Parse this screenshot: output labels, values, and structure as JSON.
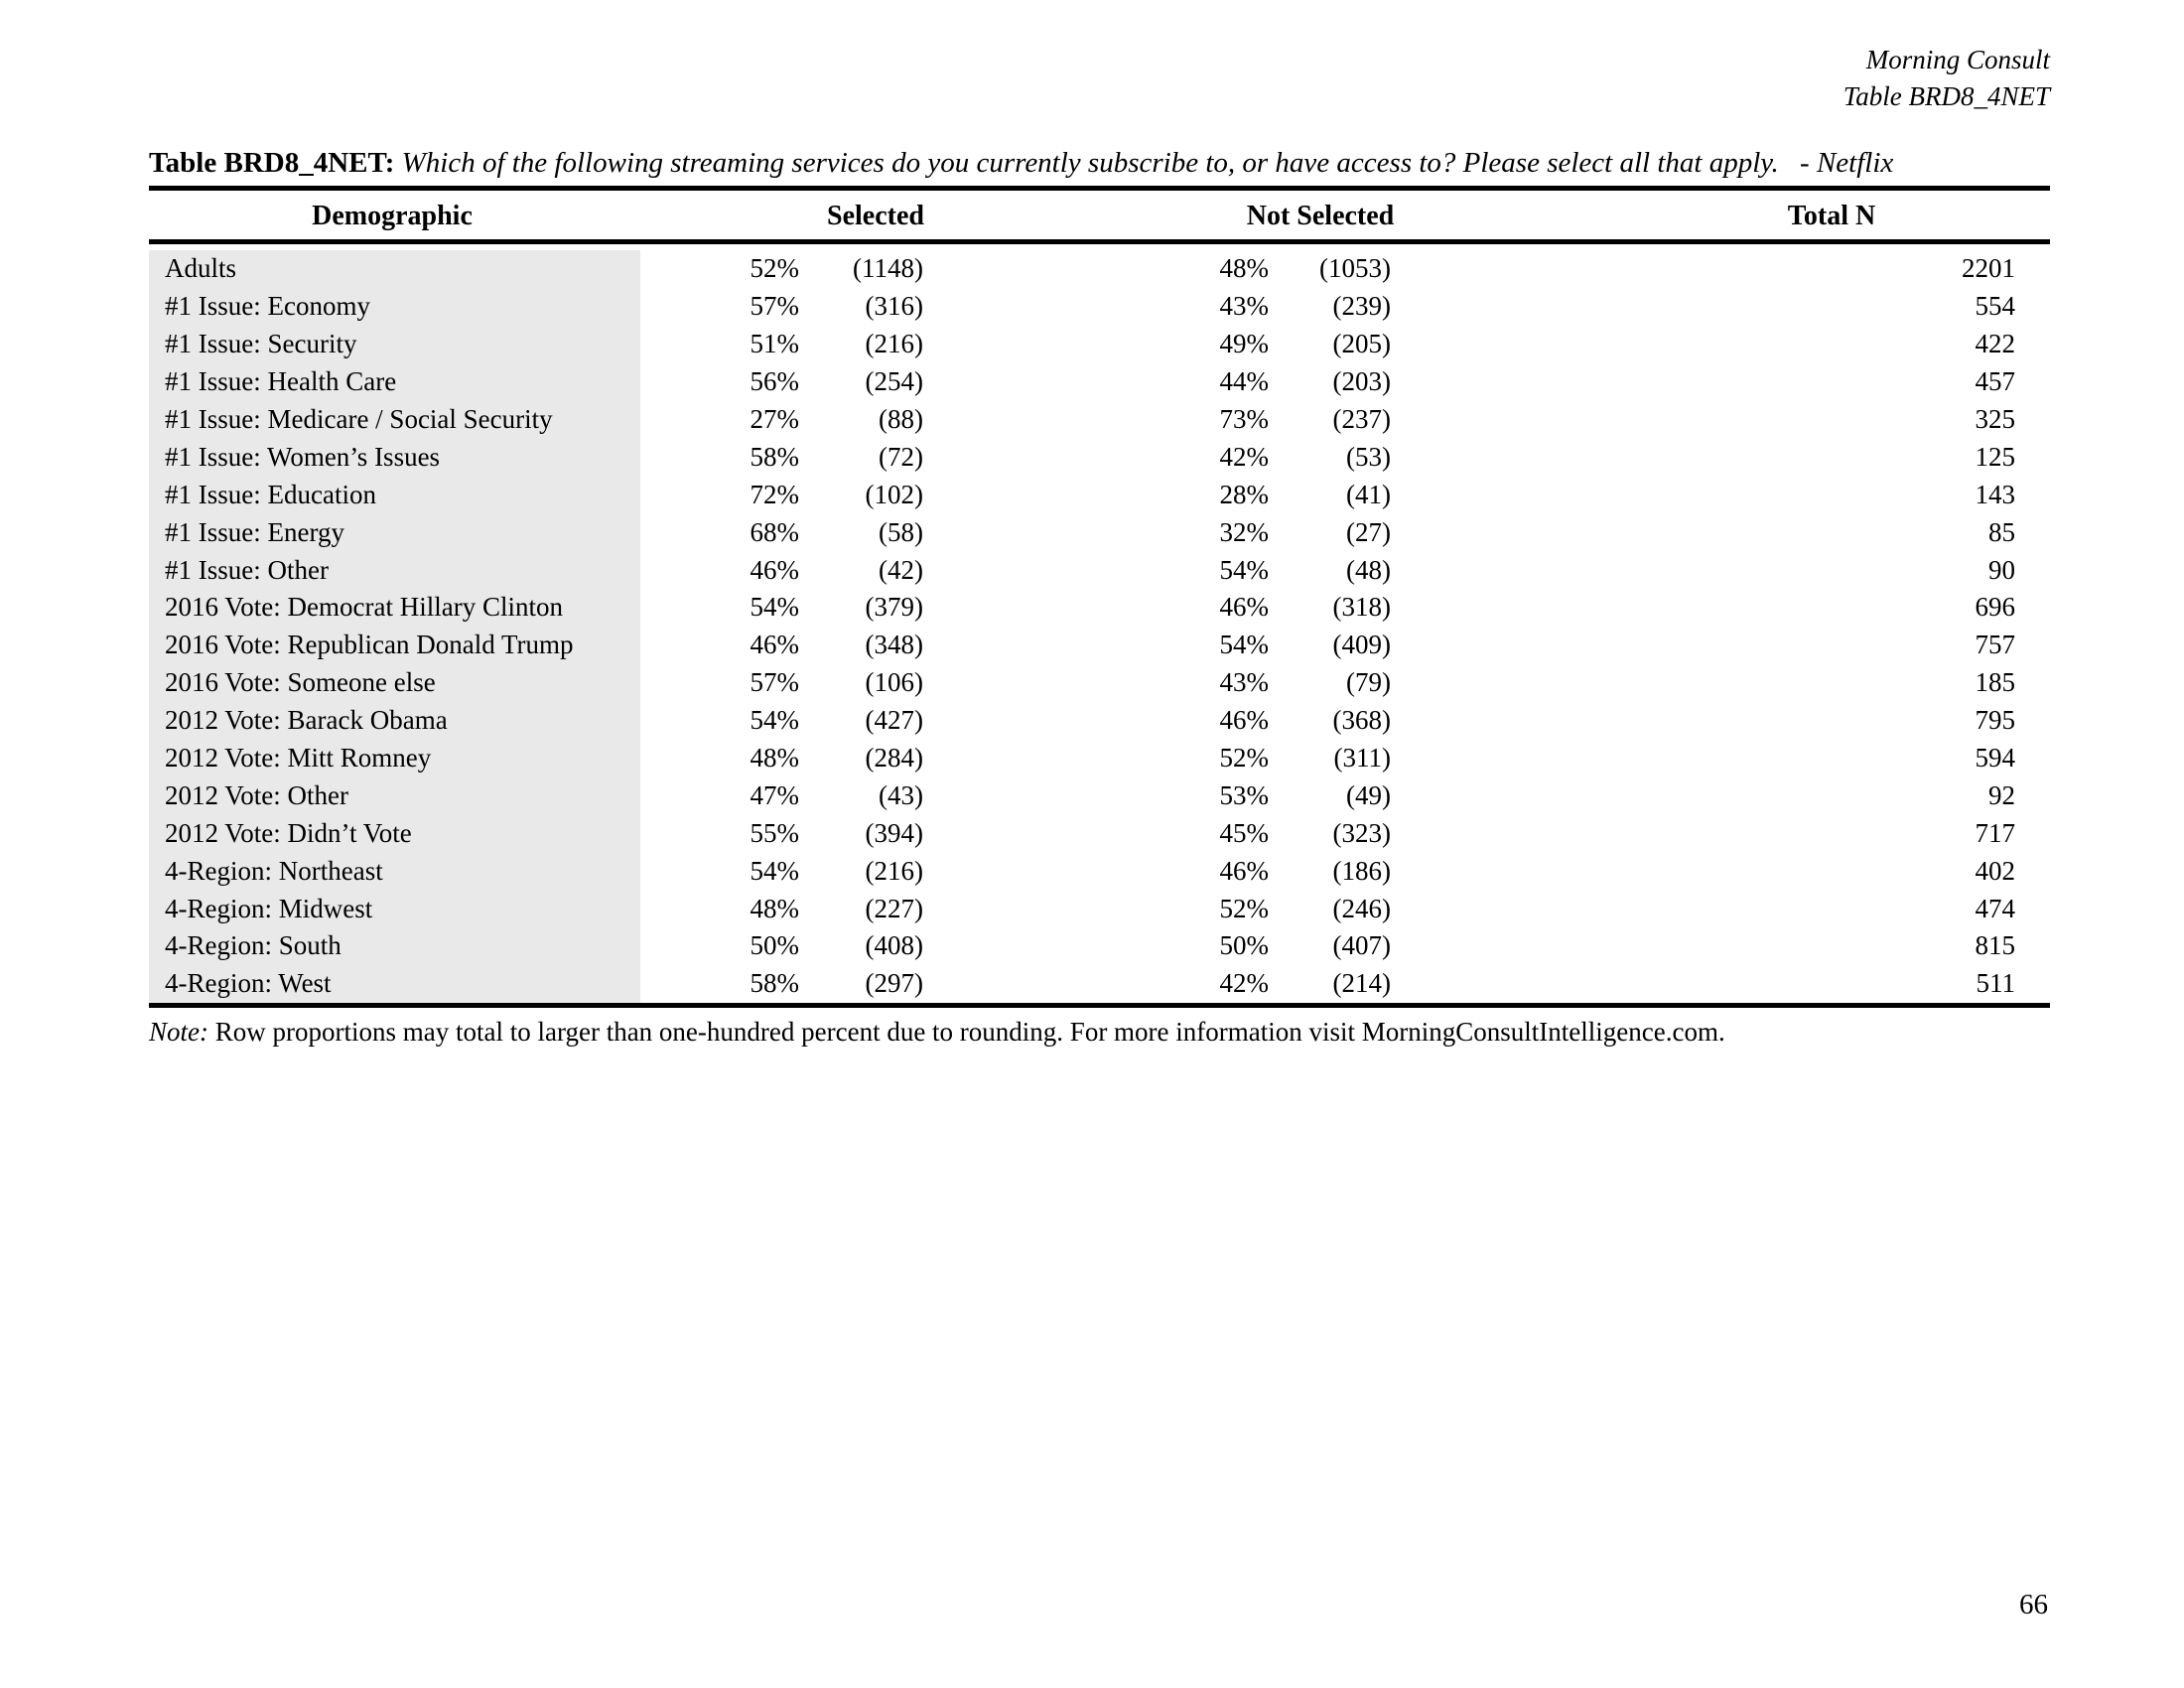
{
  "header": {
    "source": "Morning Consult",
    "table_ref": "Table BRD8_4NET"
  },
  "title": {
    "label": "Table BRD8_4NET:",
    "question": "Which of the following streaming services do you currently subscribe to, or have access to? Please select all that apply.",
    "topic": "- Netflix"
  },
  "table": {
    "columns": {
      "demographic": "Demographic",
      "selected": "Selected",
      "not_selected": "Not Selected",
      "total_n": "Total N"
    },
    "rows": [
      {
        "demographic": "Adults",
        "selected_pct": "52%",
        "selected_n": "(1148)",
        "not_selected_pct": "48%",
        "not_selected_n": "(1053)",
        "total_n": "2201"
      },
      {
        "demographic": "#1 Issue: Economy",
        "selected_pct": "57%",
        "selected_n": "(316)",
        "not_selected_pct": "43%",
        "not_selected_n": "(239)",
        "total_n": "554"
      },
      {
        "demographic": "#1 Issue: Security",
        "selected_pct": "51%",
        "selected_n": "(216)",
        "not_selected_pct": "49%",
        "not_selected_n": "(205)",
        "total_n": "422"
      },
      {
        "demographic": "#1 Issue: Health Care",
        "selected_pct": "56%",
        "selected_n": "(254)",
        "not_selected_pct": "44%",
        "not_selected_n": "(203)",
        "total_n": "457"
      },
      {
        "demographic": "#1 Issue: Medicare / Social Security",
        "selected_pct": "27%",
        "selected_n": "(88)",
        "not_selected_pct": "73%",
        "not_selected_n": "(237)",
        "total_n": "325"
      },
      {
        "demographic": "#1 Issue: Women’s Issues",
        "selected_pct": "58%",
        "selected_n": "(72)",
        "not_selected_pct": "42%",
        "not_selected_n": "(53)",
        "total_n": "125"
      },
      {
        "demographic": "#1 Issue: Education",
        "selected_pct": "72%",
        "selected_n": "(102)",
        "not_selected_pct": "28%",
        "not_selected_n": "(41)",
        "total_n": "143"
      },
      {
        "demographic": "#1 Issue: Energy",
        "selected_pct": "68%",
        "selected_n": "(58)",
        "not_selected_pct": "32%",
        "not_selected_n": "(27)",
        "total_n": "85"
      },
      {
        "demographic": "#1 Issue: Other",
        "selected_pct": "46%",
        "selected_n": "(42)",
        "not_selected_pct": "54%",
        "not_selected_n": "(48)",
        "total_n": "90"
      },
      {
        "demographic": "2016 Vote: Democrat Hillary Clinton",
        "selected_pct": "54%",
        "selected_n": "(379)",
        "not_selected_pct": "46%",
        "not_selected_n": "(318)",
        "total_n": "696"
      },
      {
        "demographic": "2016 Vote: Republican Donald Trump",
        "selected_pct": "46%",
        "selected_n": "(348)",
        "not_selected_pct": "54%",
        "not_selected_n": "(409)",
        "total_n": "757"
      },
      {
        "demographic": "2016 Vote: Someone else",
        "selected_pct": "57%",
        "selected_n": "(106)",
        "not_selected_pct": "43%",
        "not_selected_n": "(79)",
        "total_n": "185"
      },
      {
        "demographic": "2012 Vote: Barack Obama",
        "selected_pct": "54%",
        "selected_n": "(427)",
        "not_selected_pct": "46%",
        "not_selected_n": "(368)",
        "total_n": "795"
      },
      {
        "demographic": "2012 Vote: Mitt Romney",
        "selected_pct": "48%",
        "selected_n": "(284)",
        "not_selected_pct": "52%",
        "not_selected_n": "(311)",
        "total_n": "594"
      },
      {
        "demographic": "2012 Vote: Other",
        "selected_pct": "47%",
        "selected_n": "(43)",
        "not_selected_pct": "53%",
        "not_selected_n": "(49)",
        "total_n": "92"
      },
      {
        "demographic": "2012 Vote: Didn’t Vote",
        "selected_pct": "55%",
        "selected_n": "(394)",
        "not_selected_pct": "45%",
        "not_selected_n": "(323)",
        "total_n": "717"
      },
      {
        "demographic": "4-Region: Northeast",
        "selected_pct": "54%",
        "selected_n": "(216)",
        "not_selected_pct": "46%",
        "not_selected_n": "(186)",
        "total_n": "402"
      },
      {
        "demographic": "4-Region: Midwest",
        "selected_pct": "48%",
        "selected_n": "(227)",
        "not_selected_pct": "52%",
        "not_selected_n": "(246)",
        "total_n": "474"
      },
      {
        "demographic": "4-Region: South",
        "selected_pct": "50%",
        "selected_n": "(408)",
        "not_selected_pct": "50%",
        "not_selected_n": "(407)",
        "total_n": "815"
      },
      {
        "demographic": "4-Region: West",
        "selected_pct": "58%",
        "selected_n": "(297)",
        "not_selected_pct": "42%",
        "not_selected_n": "(214)",
        "total_n": "511"
      }
    ]
  },
  "note": {
    "label": "Note:",
    "text": "Row proportions may total to larger than one-hundred percent due to rounding. For more information visit MorningConsultIntelligence.com."
  },
  "footer": {
    "page_number": "66"
  },
  "colors": {
    "demographic_column_shading": "#e9e9e9",
    "text": "#000000",
    "rule": "#000000"
  }
}
